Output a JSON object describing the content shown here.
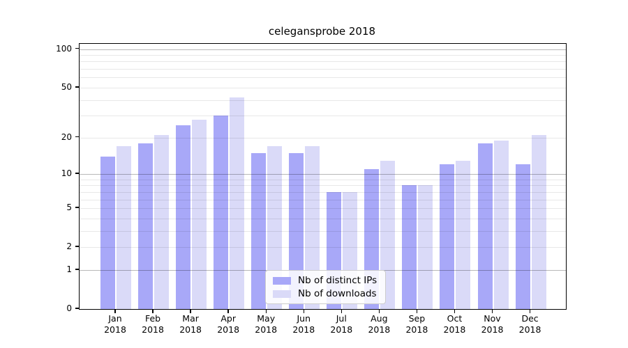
{
  "title": "celegansprobe 2018",
  "chart_data": {
    "type": "bar",
    "title": "celegansprobe 2018",
    "categories": [
      "Jan 2018",
      "Feb 2018",
      "Mar 2018",
      "Apr 2018",
      "May 2018",
      "Jun 2018",
      "Jul 2018",
      "Aug 2018",
      "Sep 2018",
      "Oct 2018",
      "Nov 2018",
      "Dec 2018"
    ],
    "series": [
      {
        "name": "Nb of distinct IPs",
        "color": "#a8a8f8",
        "values": [
          14,
          18,
          25,
          30,
          15,
          15,
          7,
          11,
          8,
          12,
          18,
          12
        ]
      },
      {
        "name": "Nb of downloads",
        "color": "#dadaf8",
        "values": [
          17,
          21,
          28,
          42,
          17,
          17,
          7,
          13,
          8,
          13,
          19,
          21
        ]
      }
    ],
    "xlabel": "",
    "ylabel": "",
    "yscale": "log1p",
    "ylim": [
      0,
      110
    ],
    "ytick_labels": [
      "100",
      "50",
      "20",
      "10",
      "5",
      "2",
      "1",
      "0"
    ],
    "ytick_values": [
      100,
      50,
      20,
      10,
      5,
      2,
      1,
      0
    ],
    "gridlines_major": [
      1,
      10,
      100
    ],
    "gridlines_minor": [
      2,
      3,
      4,
      5,
      6,
      7,
      8,
      9,
      20,
      30,
      40,
      50,
      60,
      70,
      80,
      90
    ],
    "grid": "on",
    "legend_position": "lower center"
  },
  "colors": {
    "background": "#ffffff",
    "bar_distinct_ips": "#a8a8f8",
    "bar_downloads": "#dadaf8",
    "axis": "#000000",
    "grid_minor": "#e9e9e9",
    "grid_major": "#b8b8b8"
  }
}
